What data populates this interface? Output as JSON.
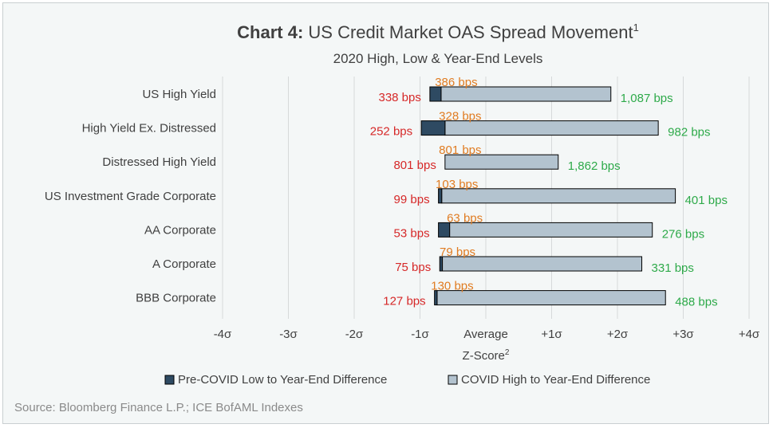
{
  "chart_data": {
    "type": "bar",
    "title_prefix": "Chart 4:",
    "title_main": "US Credit Market OAS Spread Movement",
    "title_sup": "1",
    "subtitle": "2020 High, Low & Year-End Levels",
    "xlabel": "Z-Score",
    "xlabel_sup": "2",
    "xlim": [
      -4,
      4
    ],
    "xticks": [
      {
        "v": -4,
        "label": "-4σ"
      },
      {
        "v": -3,
        "label": "-3σ"
      },
      {
        "v": -2,
        "label": "-2σ"
      },
      {
        "v": -1,
        "label": "-1σ"
      },
      {
        "v": 0,
        "label": "Average"
      },
      {
        "v": 1,
        "label": "+1σ"
      },
      {
        "v": 2,
        "label": "+2σ"
      },
      {
        "v": 3,
        "label": "+3σ"
      },
      {
        "v": 4,
        "label": "+4σ"
      }
    ],
    "categories": [
      "US High Yield",
      "High Yield Ex. Distressed",
      "Distressed High Yield",
      "US Investment Grade Corporate",
      "AA Corporate",
      "A Corporate",
      "BBB Corporate"
    ],
    "rows": [
      {
        "low_z": -0.85,
        "ye_z": -0.68,
        "high_z": 1.9,
        "low_label": "338 bps",
        "ye_label": "386 bps",
        "high_label": "1,087 bps"
      },
      {
        "low_z": -0.98,
        "ye_z": -0.62,
        "high_z": 2.62,
        "low_label": "252 bps",
        "ye_label": "328 bps",
        "high_label": "982 bps"
      },
      {
        "low_z": -0.62,
        "ye_z": -0.62,
        "high_z": 1.1,
        "low_label": "801 bps",
        "ye_label": "801 bps",
        "high_label": "1,862 bps"
      },
      {
        "low_z": -0.72,
        "ye_z": -0.67,
        "high_z": 2.88,
        "low_label": "99 bps",
        "ye_label": "103 bps",
        "high_label": "401 bps"
      },
      {
        "low_z": -0.72,
        "ye_z": -0.55,
        "high_z": 2.53,
        "low_label": "53 bps",
        "ye_label": "63 bps",
        "high_label": "276 bps"
      },
      {
        "low_z": -0.7,
        "ye_z": -0.66,
        "high_z": 2.37,
        "low_label": "75 bps",
        "ye_label": "79 bps",
        "high_label": "331 bps"
      },
      {
        "low_z": -0.78,
        "ye_z": -0.74,
        "high_z": 2.73,
        "low_label": "127 bps",
        "ye_label": "130 bps",
        "high_label": "488 bps"
      }
    ],
    "series": [
      {
        "name": "Pre-COVID Low to Year-End Difference",
        "color": "#2e4a62"
      },
      {
        "name": "COVID High to Year-End Difference",
        "color": "#b3c3cf"
      }
    ],
    "label_colors": {
      "low": "#d62828",
      "year_end": "#e07c22",
      "high": "#2eaa4a"
    },
    "gridlines": true,
    "legend_position": "bottom",
    "source": "Source: Bloomberg Finance L.P.; ICE BofAML Indexes"
  }
}
